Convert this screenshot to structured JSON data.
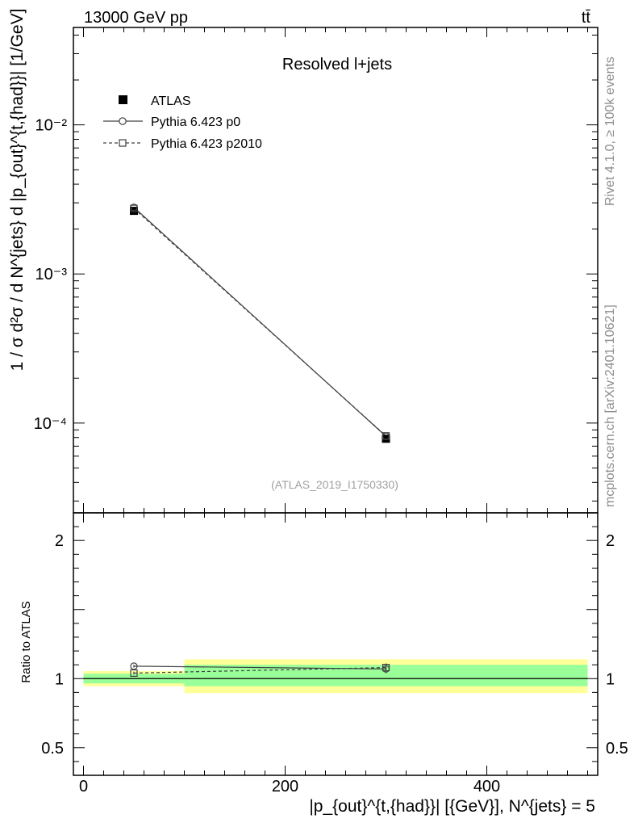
{
  "header": {
    "energy_label": "13000 GeV pp",
    "process_label": "tt̄"
  },
  "side_labels": {
    "rivet": "Rivet 4.1.0, ≥ 100k events",
    "mcplots": "mcplots.cern.ch [arXiv:2401.10621]"
  },
  "chart_data": [
    {
      "type": "line",
      "panel": "main",
      "title": "Resolved l+jets",
      "watermark": "(ATLAS_2019_I1750330)",
      "ylabel": "1 / σ d²σ / d N^{jets} d |p_{out}^{t,{had}}| [1/GeV]",
      "yscale": "log",
      "ylim": [
        2.5e-05,
        0.045
      ],
      "xlim": [
        -10,
        510
      ],
      "ytick_labels": [
        "10⁻⁴",
        "10⁻³",
        "10⁻²"
      ],
      "ytick_values": [
        0.0001,
        0.001,
        0.01
      ],
      "legend": [
        "ATLAS",
        "Pythia 6.423 p0",
        "Pythia 6.423 p2010"
      ],
      "series": [
        {
          "name": "ATLAS",
          "x": [
            50,
            300
          ],
          "values": [
            0.00265,
            7.85e-05
          ],
          "marker": "filled-square"
        },
        {
          "name": "Pythia 6.423 p0",
          "x": [
            50,
            300
          ],
          "values": [
            0.0028,
            8.15e-05
          ],
          "marker": "open-circle",
          "style": "solid"
        },
        {
          "name": "Pythia 6.423 p2010",
          "x": [
            50,
            300
          ],
          "values": [
            0.00275,
            8.2e-05
          ],
          "marker": "open-square",
          "style": "dashed"
        }
      ]
    },
    {
      "type": "line",
      "panel": "ratio",
      "ylabel": "Ratio to ATLAS",
      "xlabel": "|p_{out}^{t,{had}}| [{GeV}], N^{jets} = 5",
      "ylim": [
        0.3,
        2.2
      ],
      "xlim": [
        -10,
        510
      ],
      "xtick_labels": [
        "0",
        "200",
        "400"
      ],
      "xtick_values": [
        0,
        200,
        400
      ],
      "ytick_labels": [
        "0.5",
        "1",
        "2"
      ],
      "ytick_values": [
        0.5,
        1,
        2
      ],
      "bands": [
        {
          "xmin": 0,
          "xmax": 100,
          "stat_low": 0.965,
          "stat_high": 1.035,
          "tot_low": 0.945,
          "tot_high": 1.055
        },
        {
          "xmin": 100,
          "xmax": 500,
          "stat_low": 0.945,
          "stat_high": 1.1,
          "tot_low": 0.895,
          "tot_high": 1.14
        }
      ],
      "series": [
        {
          "name": "Pythia 6.423 p0",
          "x": [
            50,
            300
          ],
          "values": [
            1.09,
            1.07
          ],
          "errors": [
            0.01,
            0.03
          ]
        },
        {
          "name": "Pythia 6.423 p2010",
          "x": [
            50,
            300
          ],
          "values": [
            1.04,
            1.08
          ],
          "errors": [
            0.01,
            0.03
          ]
        }
      ]
    }
  ]
}
